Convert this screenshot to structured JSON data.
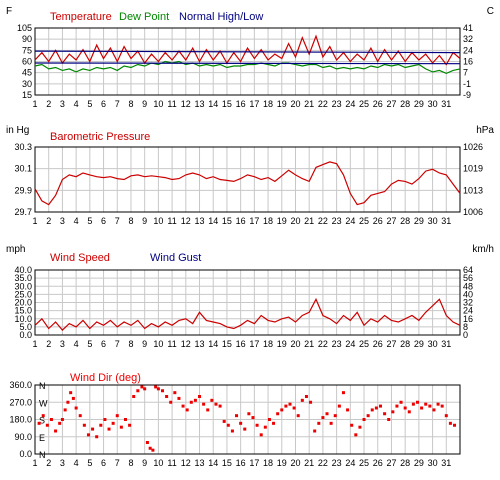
{
  "colors": {
    "temperature": "#cc0000",
    "dew_point": "#008800",
    "normal": "#000080",
    "pressure": "#cc0000",
    "wind_speed": "#cc0000",
    "wind_gust": "#000080",
    "wind_dir": "#ee0000",
    "grid": "#c8c8c8",
    "frame": "#000000"
  },
  "days": [
    "1",
    "2",
    "3",
    "4",
    "5",
    "6",
    "7",
    "8",
    "9",
    "10",
    "11",
    "12",
    "13",
    "14",
    "15",
    "16",
    "17",
    "18",
    "19",
    "20",
    "21",
    "22",
    "23",
    "24",
    "25",
    "26",
    "27",
    "28",
    "29",
    "30",
    "31"
  ],
  "chart_data": [
    {
      "type": "line",
      "title": "",
      "legend": [
        "Temperature",
        "Dew Point",
        "Normal High/Low"
      ],
      "left_unit": "F",
      "right_unit": "C",
      "x": "day of month (1-31)",
      "ylim": [
        15,
        105
      ],
      "left_ticks": [
        "105",
        "90",
        "75",
        "60",
        "45",
        "30",
        "15"
      ],
      "right_ticks": [
        "41",
        "32",
        "24",
        "16",
        "7",
        "-1",
        "-9"
      ],
      "grid": true,
      "series": [
        {
          "name": "Temperature",
          "x": [
            1,
            1.5,
            2,
            2.5,
            3,
            3.5,
            4,
            4.5,
            5,
            5.5,
            6,
            6.5,
            7,
            7.5,
            8,
            8.5,
            9,
            9.5,
            10,
            10.5,
            11,
            11.5,
            12,
            12.5,
            13,
            13.5,
            14,
            14.5,
            15,
            15.5,
            16,
            16.5,
            17,
            17.5,
            18,
            18.5,
            19,
            19.5,
            20,
            20.5,
            21,
            21.5,
            22,
            22.5,
            23,
            23.5,
            24,
            24.5,
            25,
            25.5,
            26,
            26.5,
            27,
            27.5,
            28,
            28.5,
            29,
            29.5,
            30,
            30.5,
            31,
            31.5,
            32
          ],
          "values": [
            62,
            72,
            60,
            75,
            58,
            70,
            62,
            76,
            60,
            82,
            64,
            78,
            60,
            80,
            64,
            74,
            58,
            70,
            60,
            72,
            62,
            74,
            62,
            78,
            60,
            76,
            62,
            74,
            58,
            72,
            60,
            78,
            64,
            76,
            62,
            70,
            64,
            84,
            66,
            92,
            70,
            94,
            66,
            80,
            62,
            72,
            60,
            70,
            62,
            78,
            60,
            76,
            62,
            74,
            60,
            72,
            62,
            70,
            58,
            68,
            56,
            72,
            64
          ]
        },
        {
          "name": "Dew Point",
          "x": [
            1,
            1.5,
            2,
            2.5,
            3,
            3.5,
            4,
            4.5,
            5,
            5.5,
            6,
            6.5,
            7,
            7.5,
            8,
            8.5,
            9,
            9.5,
            10,
            10.5,
            11,
            11.5,
            12,
            12.5,
            13,
            13.5,
            14,
            14.5,
            15,
            15.5,
            16,
            16.5,
            17,
            17.5,
            18,
            18.5,
            19,
            19.5,
            20,
            20.5,
            21,
            21.5,
            22,
            22.5,
            23,
            23.5,
            24,
            24.5,
            25,
            25.5,
            26,
            26.5,
            27,
            27.5,
            28,
            28.5,
            29,
            29.5,
            30,
            30.5,
            31,
            31.5,
            32
          ],
          "values": [
            54,
            56,
            50,
            52,
            48,
            50,
            46,
            50,
            48,
            52,
            50,
            52,
            48,
            54,
            52,
            56,
            54,
            58,
            56,
            60,
            58,
            60,
            56,
            58,
            54,
            56,
            54,
            56,
            52,
            54,
            54,
            56,
            56,
            58,
            56,
            54,
            58,
            58,
            56,
            54,
            56,
            56,
            52,
            54,
            50,
            52,
            50,
            52,
            50,
            54,
            52,
            56,
            54,
            56,
            52,
            54,
            56,
            50,
            46,
            48,
            44,
            48,
            50
          ]
        },
        {
          "name": "Normal High",
          "x": [
            1,
            32
          ],
          "values": [
            74,
            72
          ]
        },
        {
          "name": "Normal Low",
          "x": [
            1,
            32
          ],
          "values": [
            58,
            57
          ]
        }
      ]
    },
    {
      "type": "line",
      "title": "Barometric Pressure",
      "left_unit": "in Hg",
      "right_unit": "hPa",
      "ylim": [
        29.7,
        30.4
      ],
      "left_ticks": [
        "30.3",
        "30.1",
        "29.9",
        "29.7"
      ],
      "right_ticks": [
        "1026",
        "1019",
        "1013",
        "1006"
      ],
      "grid": true,
      "series": [
        {
          "name": "Barometric Pressure",
          "x": [
            1,
            1.5,
            2,
            2.5,
            3,
            3.5,
            4,
            4.5,
            5,
            5.5,
            6,
            6.5,
            7,
            7.5,
            8,
            8.5,
            9,
            9.5,
            10,
            10.5,
            11,
            11.5,
            12,
            12.5,
            13,
            13.5,
            14,
            14.5,
            15,
            15.5,
            16,
            16.5,
            17,
            17.5,
            18,
            18.5,
            19,
            19.5,
            20,
            20.5,
            21,
            21.5,
            22,
            22.5,
            23,
            23.5,
            24,
            24.5,
            25,
            25.5,
            26,
            26.5,
            27,
            27.5,
            28,
            28.5,
            29,
            29.5,
            30,
            30.5,
            31,
            31.5,
            32
          ],
          "values": [
            29.95,
            29.82,
            29.78,
            29.88,
            30.05,
            30.1,
            30.08,
            30.12,
            30.1,
            30.08,
            30.07,
            30.08,
            30.06,
            30.05,
            30.09,
            30.1,
            30.08,
            30.09,
            30.08,
            30.07,
            30.05,
            30.06,
            30.1,
            30.12,
            30.1,
            30.06,
            30.08,
            30.05,
            30.04,
            30.03,
            30.06,
            30.1,
            30.08,
            30.05,
            30.07,
            30.03,
            30.09,
            30.15,
            30.1,
            30.06,
            30.03,
            30.18,
            30.21,
            30.24,
            30.22,
            30.1,
            29.9,
            29.78,
            29.8,
            29.88,
            29.9,
            29.92,
            30.0,
            30.04,
            30.03,
            30.0,
            30.06,
            30.14,
            30.16,
            30.12,
            30.1,
            30.0,
            29.9
          ]
        }
      ]
    },
    {
      "type": "line",
      "title": "",
      "legend": [
        "Wind Speed",
        "Wind Gust"
      ],
      "left_unit": "mph",
      "right_unit": "km/h",
      "ylim": [
        0,
        40
      ],
      "left_ticks": [
        "40.0",
        "35.0",
        "30.0",
        "25.0",
        "20.0",
        "15.0",
        "10.0",
        "5.0",
        "0.0"
      ],
      "right_ticks": [
        "64",
        "56",
        "48",
        "40",
        "32",
        "24",
        "16",
        "8",
        "0"
      ],
      "grid": true,
      "series": [
        {
          "name": "Wind Speed",
          "x": [
            1,
            1.5,
            2,
            2.5,
            3,
            3.5,
            4,
            4.5,
            5,
            5.5,
            6,
            6.5,
            7,
            7.5,
            8,
            8.5,
            9,
            9.5,
            10,
            10.5,
            11,
            11.5,
            12,
            12.5,
            13,
            13.5,
            14,
            14.5,
            15,
            15.5,
            16,
            16.5,
            17,
            17.5,
            18,
            18.5,
            19,
            19.5,
            20,
            20.5,
            21,
            21.5,
            22,
            22.5,
            23,
            23.5,
            24,
            24.5,
            25,
            25.5,
            26,
            26.5,
            27,
            27.5,
            28,
            28.5,
            29,
            29.5,
            30,
            30.5,
            31,
            31.5,
            32
          ],
          "values": [
            6,
            10,
            4,
            8,
            3,
            7,
            5,
            9,
            4,
            8,
            6,
            9,
            5,
            8,
            6,
            9,
            4,
            7,
            5,
            8,
            6,
            9,
            10,
            7,
            14,
            9,
            8,
            7,
            5,
            4,
            6,
            9,
            7,
            12,
            9,
            8,
            10,
            11,
            8,
            12,
            14,
            22,
            12,
            10,
            7,
            12,
            9,
            14,
            6,
            10,
            8,
            12,
            9,
            8,
            10,
            12,
            9,
            14,
            18,
            22,
            12,
            8,
            6
          ]
        }
      ]
    },
    {
      "type": "scatter",
      "title": "Wind Dir (deg)",
      "ylim": [
        0,
        360
      ],
      "left_ticks": [
        "360.0",
        "270.0",
        "180.0",
        "90.0",
        "0.0"
      ],
      "compass": [
        "N",
        "W",
        "S",
        "E",
        "N"
      ],
      "grid": true,
      "series": [
        {
          "name": "Wind Dir (deg)",
          "x": [
            1.3,
            1.6,
            1.9,
            2.2,
            2.5,
            2.8,
            3.0,
            3.2,
            3.4,
            3.6,
            3.8,
            4.0,
            4.3,
            4.6,
            4.9,
            5.2,
            5.5,
            5.8,
            6.1,
            6.4,
            6.7,
            7.0,
            7.3,
            7.6,
            7.9,
            8.2,
            8.5,
            8.8,
            9.0,
            9.2,
            9.4,
            9.6,
            9.8,
            10.0,
            10.3,
            10.6,
            10.9,
            11.2,
            11.5,
            11.8,
            12.1,
            12.4,
            12.7,
            13.0,
            13.3,
            13.6,
            13.9,
            14.2,
            14.5,
            14.8,
            15.1,
            15.4,
            15.7,
            16.0,
            16.3,
            16.6,
            16.9,
            17.2,
            17.5,
            17.8,
            18.1,
            18.4,
            18.7,
            19.0,
            19.3,
            19.6,
            19.9,
            20.2,
            20.5,
            20.8,
            21.1,
            21.4,
            21.7,
            22.0,
            22.3,
            22.6,
            22.9,
            23.2,
            23.5,
            23.8,
            24.1,
            24.4,
            24.7,
            25.0,
            25.3,
            25.6,
            25.9,
            26.2,
            26.5,
            26.8,
            27.1,
            27.4,
            27.7,
            28.0,
            28.3,
            28.6,
            28.9,
            29.2,
            29.5,
            29.8,
            30.1,
            30.4,
            30.7,
            31.0,
            31.3,
            31.6
          ],
          "values": [
            160,
            200,
            150,
            180,
            120,
            160,
            180,
            230,
            270,
            320,
            290,
            240,
            200,
            150,
            100,
            130,
            90,
            150,
            180,
            130,
            160,
            200,
            140,
            180,
            150,
            300,
            330,
            350,
            340,
            60,
            30,
            20,
            350,
            340,
            330,
            300,
            270,
            320,
            290,
            250,
            230,
            270,
            280,
            300,
            260,
            230,
            280,
            260,
            250,
            170,
            150,
            120,
            200,
            160,
            130,
            210,
            190,
            150,
            100,
            140,
            180,
            160,
            210,
            230,
            250,
            260,
            240,
            200,
            280,
            300,
            270,
            120,
            160,
            190,
            210,
            160,
            200,
            250,
            320,
            230,
            150,
            100,
            140,
            180,
            200,
            230,
            240,
            250,
            210,
            180,
            220,
            250,
            270,
            240,
            220,
            260,
            270,
            240,
            260,
            250,
            230,
            260,
            250,
            200,
            160,
            150
          ]
        }
      ]
    }
  ]
}
